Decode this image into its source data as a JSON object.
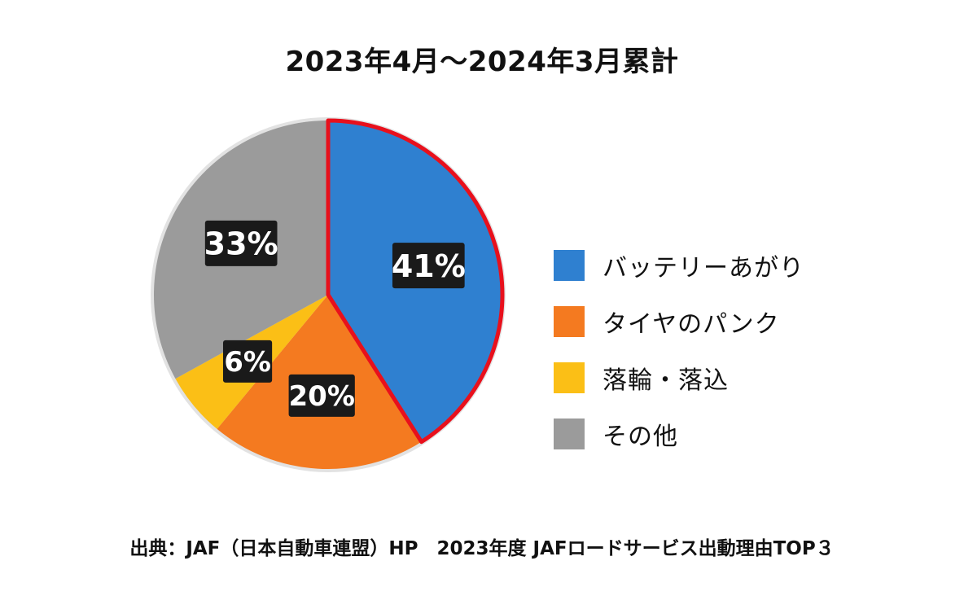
{
  "chart_data": {
    "type": "pie",
    "title": "2023年4月～2024年3月累計",
    "slices": [
      {
        "label": "バッテリーあがり",
        "value": 41,
        "display": "41%",
        "color": "#2f80d0",
        "highlighted": true
      },
      {
        "label": "タイヤのパンク",
        "value": 20,
        "display": "20%",
        "color": "#f47a20"
      },
      {
        "label": "落輪・落込",
        "value": 6,
        "display": "6%",
        "color": "#fbbf16"
      },
      {
        "label": "その他",
        "value": 33,
        "display": "33%",
        "color": "#9b9b9b"
      }
    ],
    "legend_position": "right",
    "highlight_color": "#e8101c",
    "label_box_color": "#1a1a1a"
  },
  "source": "出典：JAF（日本自動車連盟）HP　2023年度 JAFロードサービス出動理由TOP３"
}
